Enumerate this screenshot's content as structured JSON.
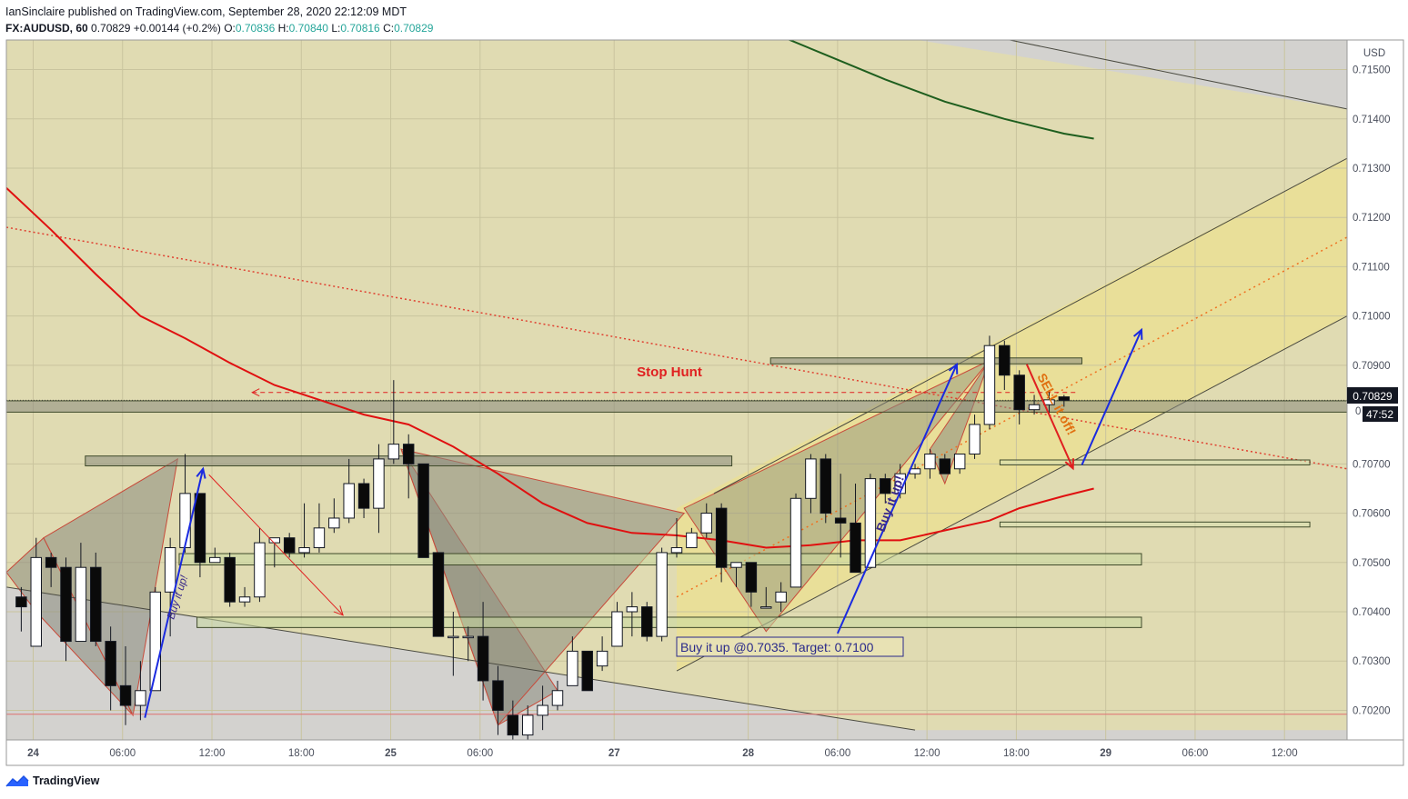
{
  "header": {
    "publisher_line": "IanSinclaire published on TradingView.com, September 28, 2020 22:12:09 MDT",
    "symbol": "FX:AUDUSD, 60",
    "last": "0.70829",
    "change": "+0.00144 (+0.2%)",
    "o_label": "O:",
    "o_value": "0.70836",
    "h_label": "H:",
    "h_value": "0.70840",
    "l_label": "L:",
    "l_value": "0.70816",
    "c_label": "C:",
    "c_value": "0.70829"
  },
  "footer": {
    "brand": "TradingView"
  },
  "chart_data": {
    "type": "candlestick",
    "currency_label": "USD",
    "ylim": [
      0.7014,
      0.7156
    ],
    "xlim": [
      -1,
      89
    ],
    "y_ticks": [
      "0.71500",
      "0.71400",
      "0.71300",
      "0.71200",
      "0.71100",
      "0.71000",
      "0.70900",
      "0.70700",
      "0.70600",
      "0.70500",
      "0.70400",
      "0.70300",
      "0.70200"
    ],
    "y_tick_values": [
      0.715,
      0.714,
      0.713,
      0.712,
      0.711,
      0.71,
      0.709,
      0.707,
      0.706,
      0.705,
      0.704,
      0.703,
      0.702
    ],
    "last_price_label": "0.70829",
    "last_price": 0.70829,
    "countdown_label": "47:52",
    "countdown_partial": "0",
    "x_ticks": [
      {
        "label": "24",
        "x": 0.8
      },
      {
        "label": "06:00",
        "x": 6.8
      },
      {
        "label": "12:00",
        "x": 12.8
      },
      {
        "label": "18:00",
        "x": 18.8
      },
      {
        "label": "25",
        "x": 24.8
      },
      {
        "label": "06:00",
        "x": 30.8
      },
      {
        "label": "27",
        "x": 39.8
      },
      {
        "label": "28",
        "x": 48.8
      },
      {
        "label": "06:00",
        "x": 54.8
      },
      {
        "label": "12:00",
        "x": 60.8
      },
      {
        "label": "18:00",
        "x": 66.8
      },
      {
        "label": "29",
        "x": 72.8
      },
      {
        "label": "06:00",
        "x": 78.8
      },
      {
        "label": "12:00",
        "x": 84.8
      }
    ],
    "candles": [
      [
        0,
        0.7043,
        0.7045,
        0.7036,
        0.7041
      ],
      [
        1,
        0.7033,
        0.7055,
        0.7033,
        0.7051
      ],
      [
        2,
        0.7051,
        0.7052,
        0.7045,
        0.7049
      ],
      [
        3,
        0.7049,
        0.7051,
        0.703,
        0.7034
      ],
      [
        4,
        0.7034,
        0.7054,
        0.7034,
        0.7049
      ],
      [
        5,
        0.7049,
        0.7052,
        0.7033,
        0.7034
      ],
      [
        6,
        0.7034,
        0.7037,
        0.702,
        0.7025
      ],
      [
        7,
        0.7025,
        0.7033,
        0.7017,
        0.7021
      ],
      [
        8,
        0.7021,
        0.703,
        0.7018,
        0.7024
      ],
      [
        9,
        0.7024,
        0.7045,
        0.7024,
        0.7044
      ],
      [
        10,
        0.7044,
        0.7055,
        0.7035,
        0.7053
      ],
      [
        11,
        0.7053,
        0.7072,
        0.7052,
        0.7064
      ],
      [
        12,
        0.7064,
        0.7064,
        0.7047,
        0.705
      ],
      [
        13,
        0.705,
        0.7053,
        0.705,
        0.7051
      ],
      [
        14,
        0.7051,
        0.7052,
        0.7041,
        0.7042
      ],
      [
        15,
        0.7042,
        0.7045,
        0.7041,
        0.7043
      ],
      [
        16,
        0.7043,
        0.7057,
        0.7042,
        0.7054
      ],
      [
        17,
        0.7054,
        0.7055,
        0.7049,
        0.7055
      ],
      [
        18,
        0.7055,
        0.7056,
        0.7051,
        0.7052
      ],
      [
        19,
        0.7052,
        0.7062,
        0.7051,
        0.7053
      ],
      [
        20,
        0.7053,
        0.7062,
        0.7052,
        0.7057
      ],
      [
        21,
        0.7057,
        0.7063,
        0.7056,
        0.7059
      ],
      [
        22,
        0.7059,
        0.7071,
        0.7058,
        0.7066
      ],
      [
        23,
        0.7066,
        0.7067,
        0.7059,
        0.7061
      ],
      [
        24,
        0.7061,
        0.7074,
        0.7056,
        0.7071
      ],
      [
        25,
        0.7071,
        0.7087,
        0.707,
        0.7074
      ],
      [
        26,
        0.7074,
        0.7076,
        0.7063,
        0.707
      ],
      [
        27,
        0.707,
        0.707,
        0.7051,
        0.7051
      ],
      [
        28,
        0.7052,
        0.7052,
        0.7035,
        0.7035
      ],
      [
        29,
        0.7035,
        0.704,
        0.7027,
        0.7035
      ],
      [
        30,
        0.7035,
        0.7037,
        0.703,
        0.7035
      ],
      [
        31,
        0.7035,
        0.7042,
        0.7022,
        0.7026
      ],
      [
        32,
        0.7026,
        0.7029,
        0.7015,
        0.702
      ],
      [
        33,
        0.7019,
        0.7022,
        0.7013,
        0.7015
      ],
      [
        34,
        0.7015,
        0.7021,
        0.7013,
        0.7019
      ],
      [
        35,
        0.7019,
        0.7025,
        0.7016,
        0.7021
      ],
      [
        36,
        0.7021,
        0.7026,
        0.702,
        0.7024
      ],
      [
        37,
        0.7025,
        0.7035,
        0.7025,
        0.7032
      ],
      [
        38,
        0.7032,
        0.7032,
        0.7024,
        0.7024
      ],
      [
        39,
        0.7029,
        0.7035,
        0.7028,
        0.7032
      ],
      [
        40,
        0.7033,
        0.7042,
        0.7033,
        0.704
      ],
      [
        41,
        0.704,
        0.7044,
        0.7035,
        0.7041
      ],
      [
        42,
        0.7041,
        0.7042,
        0.7034,
        0.7035
      ],
      [
        43,
        0.7035,
        0.7053,
        0.7034,
        0.7052
      ],
      [
        44,
        0.7052,
        0.7059,
        0.7051,
        0.7053
      ],
      [
        45,
        0.7053,
        0.7057,
        0.7053,
        0.7056
      ],
      [
        46,
        0.7056,
        0.7062,
        0.7055,
        0.706
      ],
      [
        47,
        0.7061,
        0.7062,
        0.7046,
        0.7049
      ],
      [
        48,
        0.7049,
        0.705,
        0.7045,
        0.705
      ],
      [
        49,
        0.705,
        0.705,
        0.7041,
        0.7044
      ],
      [
        50,
        0.7041,
        0.7045,
        0.7041,
        0.7041
      ],
      [
        51,
        0.7042,
        0.7046,
        0.704,
        0.7044
      ],
      [
        52,
        0.7045,
        0.7064,
        0.7045,
        0.7063
      ],
      [
        53,
        0.7063,
        0.7072,
        0.706,
        0.7071
      ],
      [
        54,
        0.7071,
        0.7072,
        0.7058,
        0.706
      ],
      [
        55,
        0.7059,
        0.7068,
        0.7051,
        0.7058
      ],
      [
        56,
        0.7058,
        0.7066,
        0.7048,
        0.7048
      ],
      [
        57,
        0.7049,
        0.7068,
        0.7049,
        0.7067
      ],
      [
        58,
        0.7067,
        0.7068,
        0.7062,
        0.7064
      ],
      [
        59,
        0.7064,
        0.707,
        0.7063,
        0.7068
      ],
      [
        60,
        0.7068,
        0.707,
        0.7067,
        0.7069
      ],
      [
        61,
        0.7069,
        0.7073,
        0.7067,
        0.7072
      ],
      [
        62,
        0.7071,
        0.7072,
        0.7068,
        0.7068
      ],
      [
        63,
        0.7069,
        0.7072,
        0.7068,
        0.7072
      ],
      [
        64,
        0.7072,
        0.708,
        0.7071,
        0.7078
      ],
      [
        65,
        0.7078,
        0.7096,
        0.7077,
        0.7094
      ],
      [
        66,
        0.7094,
        0.7095,
        0.7085,
        0.7088
      ],
      [
        67,
        0.7088,
        0.7089,
        0.7078,
        0.7081
      ],
      [
        68,
        0.7081,
        0.7084,
        0.708,
        0.7082
      ],
      [
        69,
        0.7082,
        0.7085,
        0.708,
        0.7083
      ],
      [
        70,
        0.70836,
        0.7084,
        0.70816,
        0.70829
      ]
    ],
    "ema_red": [
      [
        -1,
        0.7126
      ],
      [
        2,
        0.71175
      ],
      [
        5,
        0.71085
      ],
      [
        8,
        0.71
      ],
      [
        11,
        0.70955
      ],
      [
        14,
        0.70905
      ],
      [
        17,
        0.7086
      ],
      [
        20,
        0.7083
      ],
      [
        23,
        0.708
      ],
      [
        26,
        0.7078
      ],
      [
        29,
        0.70735
      ],
      [
        32,
        0.7068
      ],
      [
        35,
        0.7062
      ],
      [
        38,
        0.7058
      ],
      [
        41,
        0.7056
      ],
      [
        44,
        0.70555
      ],
      [
        47,
        0.70545
      ],
      [
        50,
        0.7053
      ],
      [
        53,
        0.70535
      ],
      [
        56,
        0.70545
      ],
      [
        59,
        0.70545
      ],
      [
        62,
        0.70565
      ],
      [
        65,
        0.70585
      ],
      [
        67,
        0.7061
      ],
      [
        70,
        0.70635
      ],
      [
        72,
        0.7065
      ]
    ],
    "sma_green": [
      [
        46,
        0.716
      ],
      [
        50,
        0.7158
      ],
      [
        54,
        0.7153
      ],
      [
        58,
        0.7148
      ],
      [
        62,
        0.71435
      ],
      [
        66,
        0.714
      ],
      [
        70,
        0.7137
      ],
      [
        72,
        0.7136
      ]
    ],
    "annotations": {
      "stop_hunt": "Stop Hunt",
      "buy_box": "Buy it up @0.7035. Target: 0.7100",
      "buy_left": "Buy it up!",
      "buy_right": "Buy it up!",
      "sell_label": "SELL it off!"
    }
  }
}
